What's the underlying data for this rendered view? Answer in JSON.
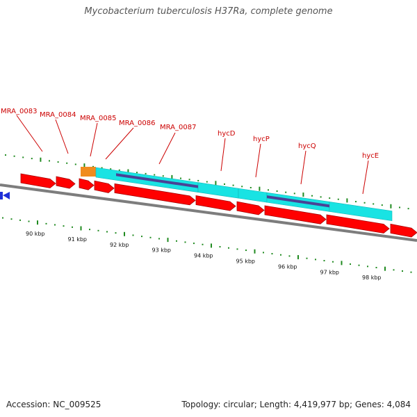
{
  "title": "Mycobacterium tuberculosis H37Ra, complete genome",
  "footer": {
    "accession": "Accession: NC_009525",
    "stats": "Topology: circular; Length: 4,419,977 bp; Genes: 4,084"
  },
  "colors": {
    "gene": "#ff0000",
    "gene_dark": "#a80000",
    "cds": "#19e3e3",
    "domain": "#4a4296",
    "orange": "#f08c1e",
    "blue": "#1f2fd8",
    "tick": "#1f8a1f",
    "backbone": "#7d7d7d",
    "label": "#cc0000"
  },
  "gene_labels": [
    "MRA_0083",
    "MRA_0084",
    "MRA_0085",
    "MRA_0086",
    "MRA_0087",
    "hycD",
    "hycP",
    "hycQ",
    "hycE"
  ],
  "scale_labels": [
    "90 kbp",
    "91 kbp",
    "92 kbp",
    "93 kbp",
    "94 kbp",
    "95 kbp",
    "96 kbp",
    "97 kbp",
    "98 kbp"
  ]
}
